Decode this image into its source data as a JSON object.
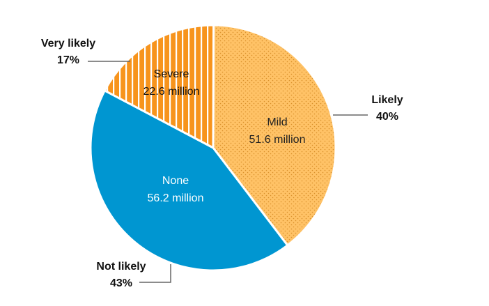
{
  "chart_data": {
    "type": "pie",
    "slices": [
      {
        "key": "mild",
        "name": "Mild",
        "value_label": "51.6 million",
        "value_millions": 51.6,
        "likelihood": "Likely",
        "percent_label": "40%",
        "percent": 40,
        "color": "#FFC266",
        "pattern": "dots"
      },
      {
        "key": "none",
        "name": "None",
        "value_label": "56.2 million",
        "value_millions": 56.2,
        "likelihood": "Not likely",
        "percent_label": "43%",
        "percent": 43,
        "color": "#0096D1",
        "pattern": "solid"
      },
      {
        "key": "severe",
        "name": "Severe",
        "value_label": "22.6 million",
        "value_millions": 22.6,
        "likelihood": "Very likely",
        "percent_label": "17%",
        "percent": 17,
        "color": "#F7941D",
        "pattern": "stripes"
      }
    ]
  }
}
